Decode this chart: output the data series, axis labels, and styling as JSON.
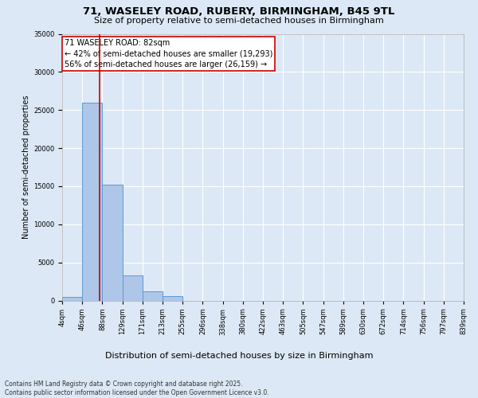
{
  "title_line1": "71, WASELEY ROAD, RUBERY, BIRMINGHAM, B45 9TL",
  "title_line2": "Size of property relative to semi-detached houses in Birmingham",
  "xlabel": "Distribution of semi-detached houses by size in Birmingham",
  "ylabel": "Number of semi-detached properties",
  "bin_labels": [
    "4sqm",
    "46sqm",
    "88sqm",
    "129sqm",
    "171sqm",
    "213sqm",
    "255sqm",
    "296sqm",
    "338sqm",
    "380sqm",
    "422sqm",
    "463sqm",
    "505sqm",
    "547sqm",
    "589sqm",
    "630sqm",
    "672sqm",
    "714sqm",
    "756sqm",
    "797sqm",
    "839sqm"
  ],
  "bar_values": [
    500,
    26000,
    15200,
    3300,
    1200,
    600,
    0,
    0,
    0,
    0,
    0,
    0,
    0,
    0,
    0,
    0,
    0,
    0,
    0,
    0
  ],
  "bar_color": "#aec6e8",
  "bar_edge_color": "#5b9bd5",
  "background_color": "#dce8f5",
  "grid_color": "#ffffff",
  "ylim": [
    0,
    35000
  ],
  "yticks": [
    0,
    5000,
    10000,
    15000,
    20000,
    25000,
    30000,
    35000
  ],
  "property_sqm": 82,
  "annotation_title": "71 WASELEY ROAD: 82sqm",
  "annotation_line1": "← 42% of semi-detached houses are smaller (19,293)",
  "annotation_line2": "56% of semi-detached houses are larger (26,159) →",
  "vline_color": "#cc0000",
  "annotation_box_color": "#ffffff",
  "annotation_box_edge": "#cc0000",
  "footer_line1": "Contains HM Land Registry data © Crown copyright and database right 2025.",
  "footer_line2": "Contains public sector information licensed under the Open Government Licence v3.0.",
  "title_fontsize": 9.5,
  "subtitle_fontsize": 8,
  "ylabel_fontsize": 7,
  "xlabel_fontsize": 8,
  "tick_fontsize": 6,
  "footer_fontsize": 5.5,
  "ann_fontsize": 7
}
